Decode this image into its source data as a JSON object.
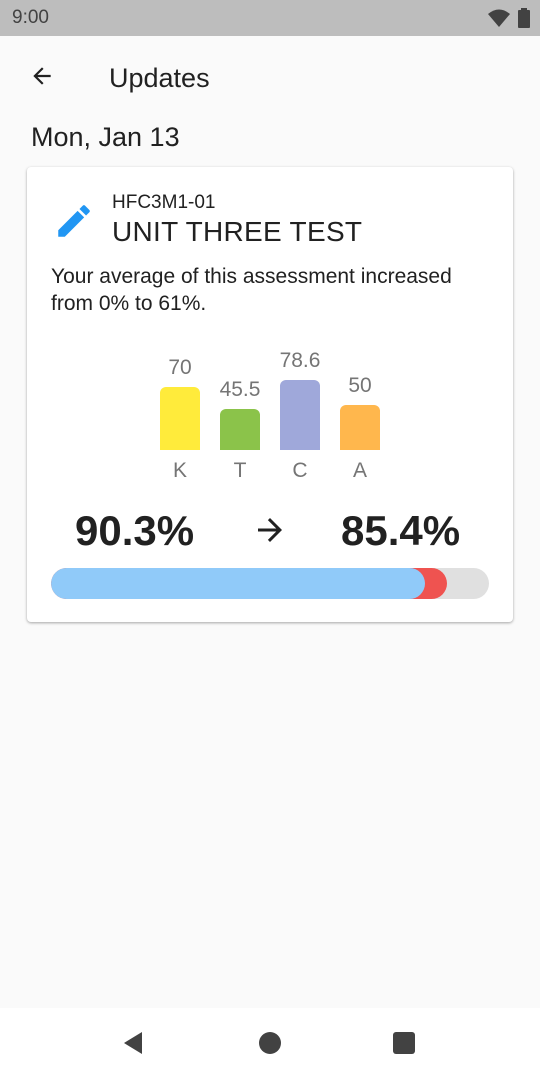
{
  "status_bar": {
    "time": "9:00",
    "icons": [
      "wifi-icon",
      "battery-icon"
    ]
  },
  "app_bar": {
    "title": "Updates",
    "back_icon": "arrow-back-icon"
  },
  "date_heading": "Mon, Jan 13",
  "card": {
    "icon": "pencil-icon",
    "course_code": "HFC3M1-01",
    "assessment_title": "UNIT THREE TEST",
    "message": "Your average of this assessment increased from 0% to 61%.",
    "before_percent": "90.3%",
    "after_percent": "85.4%",
    "arrow_icon": "arrow-forward-icon",
    "progress": {
      "before": 0.903,
      "after": 0.854,
      "fill_color": "#90caf9",
      "decrease_color": "#ef5350",
      "track_color": "#e0e0e0"
    }
  },
  "chart_data": {
    "type": "bar",
    "categories": [
      "K",
      "T",
      "C",
      "A"
    ],
    "values": [
      70,
      45.5,
      78.6,
      50
    ],
    "value_labels": [
      "70",
      "45.5",
      "78.6",
      "50"
    ],
    "colors": [
      "#ffeb3b",
      "#8bc34a",
      "#9fa8da",
      "#ffb74d"
    ],
    "title": "",
    "xlabel": "",
    "ylabel": "",
    "ylim": [
      0,
      100
    ],
    "grid": false
  },
  "nav_bar": {
    "icons": [
      "nav-back-icon",
      "nav-home-icon",
      "nav-recents-icon"
    ]
  }
}
